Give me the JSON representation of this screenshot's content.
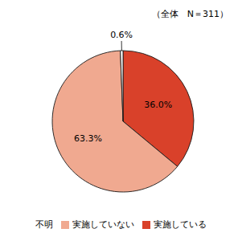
{
  "chart_data": {
    "type": "pie",
    "categories": [
      "実施している",
      "実施していない",
      "不明"
    ],
    "values": [
      36.0,
      63.3,
      0.6
    ],
    "value_labels": [
      "36.0%",
      "63.3%",
      "0.6%"
    ],
    "data_labels": true,
    "colors": [
      "#d9412a",
      "#f0a990",
      "#ffffff"
    ],
    "annotation": "（全体　N＝311）",
    "legend": "bottom"
  }
}
